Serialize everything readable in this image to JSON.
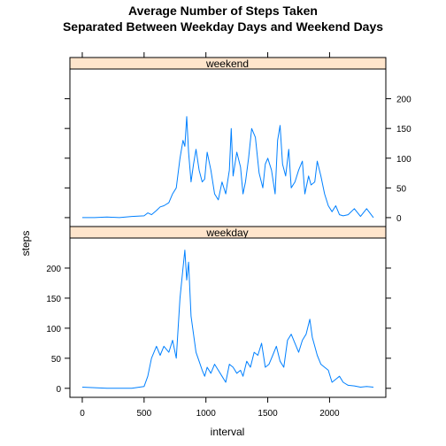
{
  "chart_data": {
    "type": "line",
    "title": "Average Number of Steps Taken",
    "subtitle": "Separated Between Weekday Days and Weekend Days",
    "xlabel": "interval",
    "ylabel": "steps",
    "xlim": [
      -100,
      2455
    ],
    "ylim": [
      -15,
      250
    ],
    "x_ticks": [
      0,
      500,
      1000,
      1500,
      2000
    ],
    "y_ticks": [
      0,
      50,
      100,
      150,
      200
    ],
    "line_color": "#0080ff",
    "strip_color": "#ffe5cc",
    "panels": [
      {
        "name": "weekend",
        "x": [
          0,
          100,
          200,
          300,
          400,
          500,
          530,
          560,
          600,
          630,
          660,
          700,
          730,
          760,
          790,
          815,
          830,
          845,
          860,
          880,
          900,
          920,
          945,
          970,
          990,
          1010,
          1040,
          1070,
          1100,
          1130,
          1160,
          1190,
          1205,
          1220,
          1250,
          1280,
          1300,
          1320,
          1345,
          1370,
          1400,
          1430,
          1460,
          1480,
          1500,
          1530,
          1560,
          1580,
          1600,
          1620,
          1645,
          1670,
          1690,
          1720,
          1750,
          1780,
          1800,
          1830,
          1850,
          1880,
          1900,
          1930,
          1960,
          1990,
          2020,
          2050,
          2080,
          2110,
          2150,
          2200,
          2250,
          2300,
          2355
        ],
        "y": [
          0,
          0,
          1,
          0,
          2,
          3,
          8,
          5,
          12,
          18,
          20,
          25,
          40,
          50,
          100,
          130,
          120,
          170,
          110,
          60,
          90,
          115,
          80,
          60,
          65,
          110,
          80,
          40,
          30,
          60,
          40,
          80,
          150,
          70,
          110,
          85,
          40,
          60,
          100,
          150,
          135,
          75,
          50,
          90,
          100,
          80,
          40,
          130,
          155,
          90,
          70,
          115,
          50,
          60,
          80,
          95,
          40,
          70,
          55,
          60,
          95,
          70,
          40,
          20,
          10,
          20,
          5,
          3,
          5,
          15,
          2,
          15,
          0
        ]
      },
      {
        "name": "weekday",
        "x": [
          0,
          100,
          200,
          300,
          400,
          500,
          530,
          560,
          600,
          630,
          660,
          700,
          730,
          760,
          790,
          815,
          830,
          845,
          860,
          880,
          900,
          920,
          945,
          970,
          990,
          1010,
          1040,
          1070,
          1100,
          1130,
          1160,
          1190,
          1220,
          1250,
          1280,
          1300,
          1330,
          1360,
          1390,
          1420,
          1450,
          1480,
          1510,
          1540,
          1570,
          1600,
          1630,
          1660,
          1690,
          1720,
          1750,
          1780,
          1810,
          1840,
          1860,
          1880,
          1900,
          1930,
          1960,
          1990,
          2020,
          2050,
          2080,
          2110,
          2150,
          2200,
          2250,
          2300,
          2355
        ],
        "y": [
          2,
          1,
          0,
          0,
          0,
          3,
          20,
          50,
          70,
          55,
          70,
          60,
          80,
          50,
          150,
          200,
          230,
          180,
          210,
          120,
          90,
          60,
          45,
          30,
          20,
          35,
          25,
          40,
          30,
          20,
          10,
          40,
          35,
          25,
          30,
          20,
          45,
          35,
          60,
          55,
          75,
          35,
          40,
          55,
          70,
          45,
          35,
          80,
          90,
          75,
          60,
          80,
          90,
          115,
          85,
          70,
          55,
          40,
          35,
          30,
          10,
          15,
          20,
          10,
          5,
          4,
          2,
          3,
          2
        ]
      }
    ]
  }
}
